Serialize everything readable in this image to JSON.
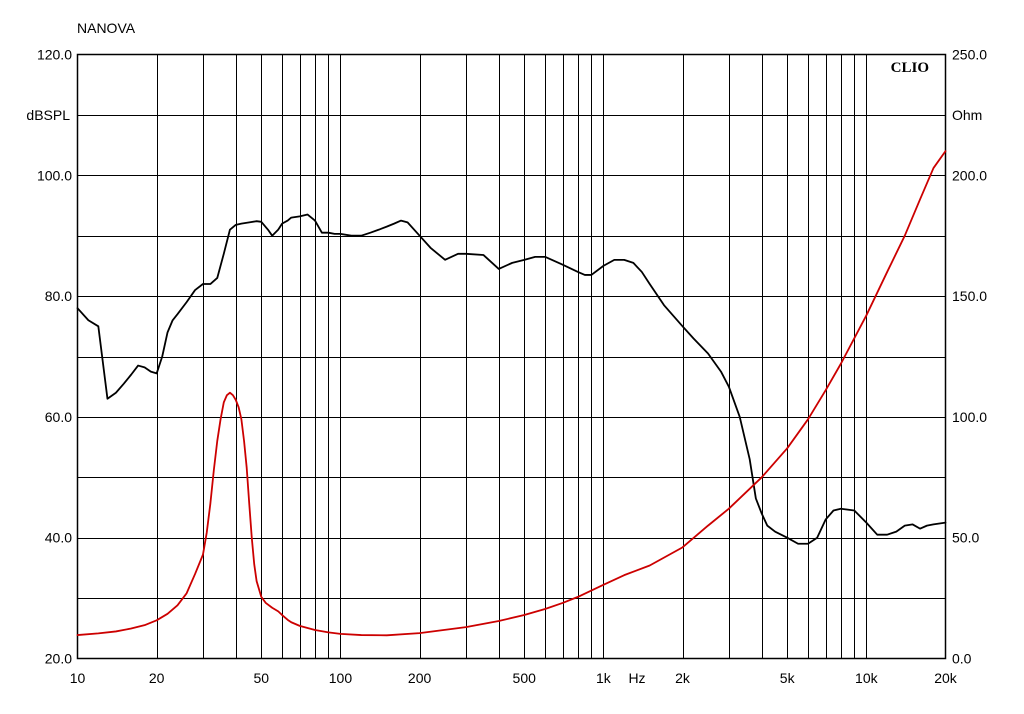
{
  "chart_data": {
    "type": "line",
    "title": "NANOVA",
    "watermark": "CLIO",
    "x_axis": {
      "scale": "log",
      "range": [
        10,
        20000
      ],
      "unit_label": "Hz",
      "tick_labels": [
        {
          "value": 10,
          "label": "10"
        },
        {
          "value": 20,
          "label": "20"
        },
        {
          "value": 50,
          "label": "50"
        },
        {
          "value": 100,
          "label": "100"
        },
        {
          "value": 200,
          "label": "200"
        },
        {
          "value": 500,
          "label": "500"
        },
        {
          "value": 1000,
          "label": "1k"
        },
        {
          "value": 2000,
          "label": "2k"
        },
        {
          "value": 5000,
          "label": "5k"
        },
        {
          "value": 10000,
          "label": "10k"
        },
        {
          "value": 20000,
          "label": "20k"
        }
      ]
    },
    "y_left": {
      "label": "dBSPL",
      "range": [
        20,
        120
      ],
      "tick_labels": [
        "20.0",
        "40.0",
        "60.0",
        "80.0",
        "100.0",
        "120.0"
      ]
    },
    "y_right": {
      "label": "Ohm",
      "range": [
        0,
        250
      ],
      "tick_labels": [
        "0.0",
        "50.0",
        "100.0",
        "150.0",
        "200.0",
        "250.0"
      ]
    },
    "grid": true,
    "series": [
      {
        "axis": "left",
        "color": "#000000",
        "x": [
          10,
          11,
          12,
          13,
          14,
          15,
          16,
          17,
          18,
          19,
          20,
          21,
          22,
          23,
          24,
          26,
          28,
          30,
          32,
          34,
          36,
          38,
          40,
          42,
          45,
          48,
          50,
          53,
          55,
          58,
          60,
          63,
          65,
          70,
          75,
          80,
          85,
          90,
          95,
          100,
          110,
          120,
          130,
          140,
          150,
          160,
          170,
          180,
          200,
          220,
          250,
          280,
          300,
          350,
          400,
          450,
          500,
          550,
          600,
          700,
          800,
          850,
          900,
          1000,
          1100,
          1200,
          1300,
          1400,
          1500,
          1700,
          2000,
          2200,
          2500,
          2800,
          3000,
          3300,
          3600,
          3800,
          4000,
          4200,
          4500,
          5000,
          5500,
          6000,
          6500,
          7000,
          7500,
          8000,
          9000,
          10000,
          11000,
          12000,
          13000,
          14000,
          15000,
          16000,
          17000,
          18000,
          20000
        ],
        "y": [
          78,
          76,
          75,
          63,
          64,
          65.5,
          67,
          68.5,
          68.2,
          67.5,
          67.2,
          70,
          74,
          76,
          77,
          79,
          81,
          82,
          82,
          83,
          87,
          91,
          91.8,
          92,
          92.2,
          92.4,
          92.3,
          91,
          90,
          91,
          92,
          92.5,
          93,
          93.2,
          93.5,
          92.5,
          90.5,
          90.5,
          90.3,
          90.3,
          90,
          90,
          90.5,
          91,
          91.5,
          92,
          92.5,
          92.2,
          90,
          88,
          86,
          87,
          87,
          86.8,
          84.5,
          85.5,
          86,
          86.5,
          86.5,
          85.2,
          84,
          83.5,
          83.5,
          85,
          86,
          86,
          85.5,
          84,
          82,
          78.5,
          75,
          73,
          70.5,
          67.5,
          65,
          60,
          53,
          46.5,
          44,
          42,
          41,
          40,
          39,
          39,
          40,
          43,
          44.5,
          44.8,
          44.5,
          42.5,
          40.5,
          40.5,
          41,
          42,
          42.2,
          41.5,
          42,
          42.2,
          42.5
        ]
      },
      {
        "axis": "right",
        "color": "#cc0000",
        "x": [
          10,
          12,
          14,
          16,
          18,
          20,
          22,
          24,
          26,
          28,
          30,
          31,
          32,
          33,
          34,
          35,
          36,
          37,
          38,
          39,
          40,
          41,
          42,
          43,
          44,
          45,
          46,
          47,
          48,
          50,
          52,
          55,
          58,
          60,
          63,
          65,
          70,
          80,
          90,
          100,
          120,
          150,
          200,
          300,
          400,
          500,
          600,
          700,
          800,
          1000,
          1200,
          1500,
          2000,
          2500,
          3000,
          4000,
          5000,
          6000,
          7000,
          8000,
          10000,
          12000,
          14000,
          16000,
          18000,
          20000
        ],
        "y": [
          9.7,
          10.4,
          11.2,
          12.4,
          13.8,
          15.8,
          18.5,
          22,
          27,
          35,
          43,
          52,
          64,
          78,
          90,
          99,
          106,
          109,
          110,
          109,
          107,
          104,
          99,
          90,
          79,
          64,
          50,
          39,
          32,
          25.5,
          23,
          21,
          19.5,
          18,
          16,
          15,
          13.5,
          11.8,
          10.8,
          10.2,
          9.7,
          9.6,
          10.5,
          13,
          15.5,
          18,
          20.5,
          23,
          25.5,
          30.5,
          34.5,
          38.5,
          46,
          55,
          62,
          75,
          87,
          99,
          111,
          122,
          142,
          160,
          175,
          190,
          203,
          210
        ]
      }
    ]
  }
}
